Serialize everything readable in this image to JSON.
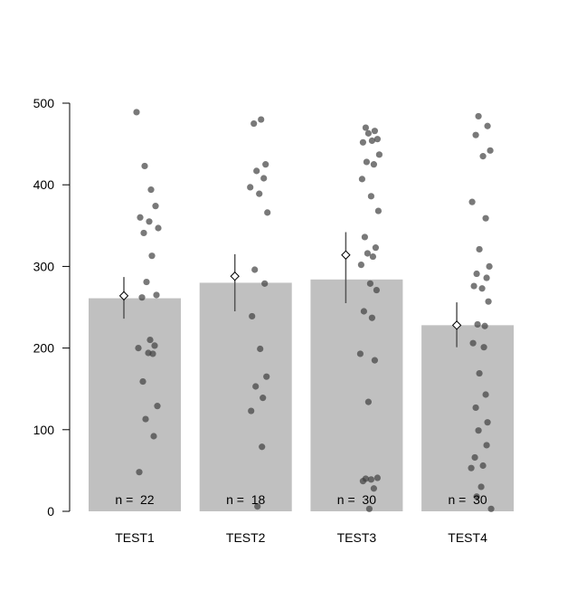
{
  "chart_data": {
    "type": "bar",
    "title": "",
    "xlabel": "",
    "ylabel": "",
    "ylim": [
      0,
      500
    ],
    "yticks": [
      0,
      100,
      200,
      300,
      400,
      500
    ],
    "grid": false,
    "legend": "none",
    "colors": {
      "bar": "#c0c0c0",
      "point": "#404040",
      "errorbar": "#555555",
      "mean_marker": "#000000"
    },
    "categories": [
      "TEST1",
      "TEST2",
      "TEST3",
      "TEST4"
    ],
    "n_labels": [
      "n =  22",
      "n =  18",
      "n =  30",
      "n =  30"
    ],
    "bar_values": [
      261,
      280,
      284,
      228
    ],
    "means": [
      264,
      288,
      314,
      228
    ],
    "error_low": [
      236,
      245,
      255,
      201
    ],
    "error_high": [
      287,
      315,
      342,
      256
    ],
    "points": [
      [
        489,
        423,
        394,
        374,
        360,
        355,
        347,
        341,
        313,
        281,
        265,
        262,
        210,
        203,
        200,
        194,
        193,
        159,
        129,
        113,
        92,
        48
      ],
      [
        480,
        475,
        425,
        417,
        408,
        397,
        389,
        366,
        296,
        279,
        239,
        199,
        165,
        153,
        139,
        123,
        79,
        6
      ],
      [
        470,
        466,
        463,
        456,
        454,
        452,
        437,
        428,
        425,
        407,
        386,
        368,
        336,
        323,
        316,
        312,
        302,
        279,
        271,
        245,
        237,
        193,
        185,
        134,
        41,
        40,
        39,
        37,
        28,
        3
      ],
      [
        484,
        472,
        461,
        442,
        435,
        379,
        359,
        321,
        300,
        291,
        286,
        276,
        273,
        257,
        229,
        227,
        206,
        201,
        169,
        143,
        127,
        109,
        99,
        81,
        66,
        56,
        53,
        30,
        18,
        3
      ]
    ]
  }
}
